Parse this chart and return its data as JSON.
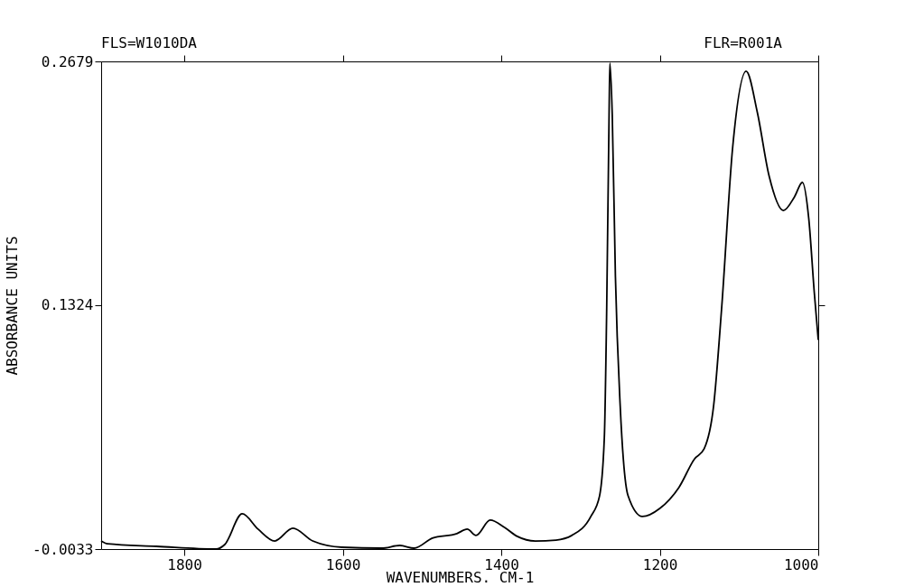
{
  "chart_data": {
    "type": "line",
    "xlabel": "WAVENUMBERS. CM-1",
    "ylabel": "ABSORBANCE UNITS",
    "annotations": [
      "FLS=W1010DA",
      "FLR=R001A"
    ],
    "xlim": [
      1905,
      1000
    ],
    "xticks": [
      1800,
      1600,
      1400,
      1200,
      1000
    ],
    "ylim": [
      -0.0033,
      0.2679
    ],
    "yticks": [
      -0.0033,
      0.1324,
      0.2679
    ],
    "grid": false,
    "legend": false,
    "marker": "none",
    "line_style": "solid",
    "series": [
      {
        "color": "#000000",
        "x": [
          1905,
          1897,
          1835,
          1760,
          1749,
          1727,
          1707,
          1686,
          1663,
          1638,
          1601,
          1551,
          1528,
          1510,
          1487,
          1456,
          1443,
          1432,
          1414,
          1396,
          1380,
          1357,
          1331,
          1311,
          1287,
          1276,
          1270,
          1267,
          1264,
          1263,
          1260,
          1256,
          1250,
          1240,
          1222,
          1200,
          1176,
          1156,
          1144,
          1132,
          1122,
          1108,
          1091,
          1077,
          1062,
          1044,
          1030,
          1020,
          1012,
          1005,
          1000
        ],
        "values": [
          0.0012,
          -0.0004,
          -0.0018,
          -0.0033,
          -0.0008,
          0.0163,
          0.0078,
          0.0012,
          0.0083,
          0.0012,
          -0.0023,
          -0.0028,
          -0.0013,
          -0.0028,
          0.0028,
          0.0053,
          0.0078,
          0.0043,
          0.0128,
          0.0088,
          0.0038,
          0.0012,
          0.0017,
          0.0043,
          0.0148,
          0.0263,
          0.0585,
          0.1303,
          0.2383,
          0.2669,
          0.2383,
          0.1484,
          0.0766,
          0.0263,
          0.0148,
          0.0193,
          0.0309,
          0.0469,
          0.0525,
          0.0766,
          0.1303,
          0.2202,
          0.2624,
          0.2398,
          0.2041,
          0.185,
          0.1926,
          0.2006,
          0.1805,
          0.1393,
          0.113
        ]
      }
    ]
  }
}
